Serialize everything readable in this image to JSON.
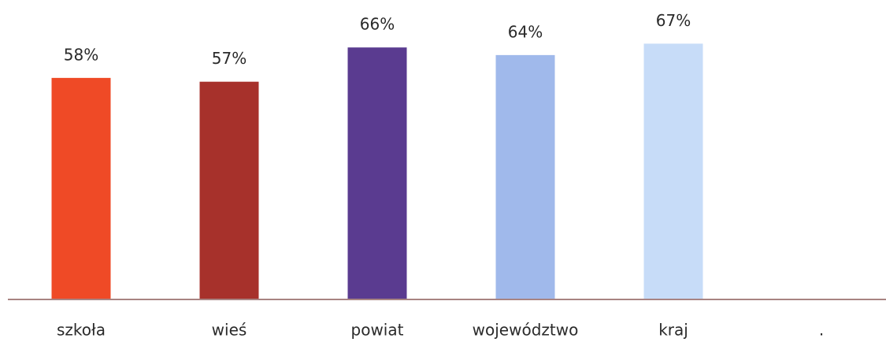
{
  "chart_data": {
    "type": "bar",
    "categories": [
      "szkoła",
      "wieś",
      "powiat",
      "województwo",
      "kraj",
      "."
    ],
    "values": [
      58,
      57,
      66,
      64,
      67,
      null
    ],
    "value_labels": [
      "58%",
      "57%",
      "66%",
      "64%",
      "67%",
      null
    ],
    "colors": [
      "#ef4a26",
      "#a7312b",
      "#5a3b90",
      "#a0b9eb",
      "#c7dcf8",
      null
    ]
  }
}
